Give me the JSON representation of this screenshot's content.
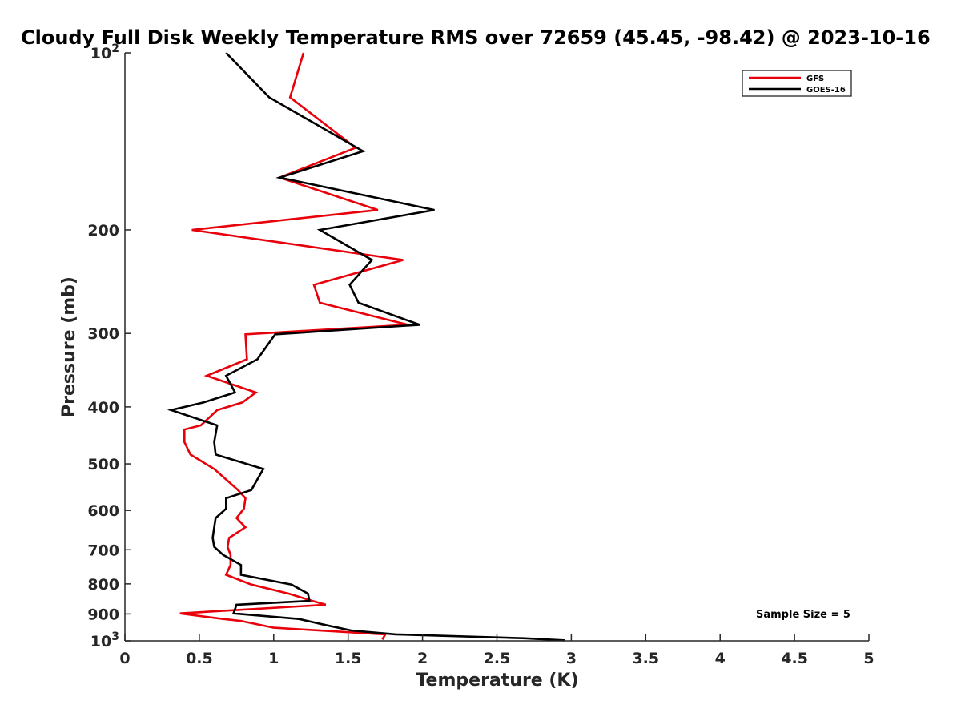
{
  "chart_data": {
    "type": "line",
    "title": "Cloudy Full Disk Weekly Temperature RMS over 72659 (45.45, -98.42) @ 2023-10-16",
    "xlabel": "Temperature (K)",
    "ylabel": "Pressure (mb)",
    "xlim": [
      0,
      5
    ],
    "ylim": [
      100,
      1000
    ],
    "y_scale": "log",
    "y_reversed": true,
    "grid": false,
    "legend_position": "top-right",
    "x_ticks": [
      {
        "value": 0,
        "label": "0"
      },
      {
        "value": 0.5,
        "label": "0.5"
      },
      {
        "value": 1,
        "label": "1"
      },
      {
        "value": 1.5,
        "label": "1.5"
      },
      {
        "value": 2,
        "label": "2"
      },
      {
        "value": 2.5,
        "label": "2.5"
      },
      {
        "value": 3,
        "label": "3"
      },
      {
        "value": 3.5,
        "label": "3.5"
      },
      {
        "value": 4,
        "label": "4"
      },
      {
        "value": 4.5,
        "label": "4.5"
      },
      {
        "value": 5,
        "label": "5"
      }
    ],
    "y_ticks": [
      {
        "value": 100,
        "base": "10",
        "exp": "2"
      },
      {
        "value": 200,
        "label": "200"
      },
      {
        "value": 300,
        "label": "300"
      },
      {
        "value": 400,
        "label": "400"
      },
      {
        "value": 500,
        "label": "500"
      },
      {
        "value": 600,
        "label": "600"
      },
      {
        "value": 700,
        "label": "700"
      },
      {
        "value": 800,
        "label": "800"
      },
      {
        "value": 900,
        "label": "900"
      },
      {
        "value": 1000,
        "base": "10",
        "exp": "3"
      }
    ],
    "series": [
      {
        "name": "GFS",
        "color": "#e8000b",
        "points": [
          [
            1.2,
            100
          ],
          [
            1.11,
            119
          ],
          [
            1.55,
            145
          ],
          [
            1.04,
            163
          ],
          [
            1.7,
            185
          ],
          [
            0.45,
            200
          ],
          [
            1.87,
            225
          ],
          [
            1.27,
            248
          ],
          [
            1.31,
            266
          ],
          [
            1.9,
            290
          ],
          [
            0.81,
            301
          ],
          [
            0.82,
            332
          ],
          [
            0.55,
            354
          ],
          [
            0.88,
            378
          ],
          [
            0.79,
            393
          ],
          [
            0.62,
            405
          ],
          [
            0.51,
            430
          ],
          [
            0.4,
            437
          ],
          [
            0.4,
            459
          ],
          [
            0.44,
            482
          ],
          [
            0.6,
            510
          ],
          [
            0.76,
            554
          ],
          [
            0.81,
            572
          ],
          [
            0.8,
            596
          ],
          [
            0.75,
            618
          ],
          [
            0.81,
            641
          ],
          [
            0.7,
            668
          ],
          [
            0.69,
            692
          ],
          [
            0.71,
            714
          ],
          [
            0.71,
            743
          ],
          [
            0.68,
            772
          ],
          [
            0.85,
            802
          ],
          [
            1.1,
            831
          ],
          [
            1.26,
            855
          ],
          [
            1.35,
            868
          ],
          [
            0.37,
            898
          ],
          [
            0.66,
            918
          ],
          [
            0.78,
            925
          ],
          [
            1.0,
            950
          ],
          [
            1.75,
            975
          ],
          [
            1.73,
            995
          ]
        ]
      },
      {
        "name": "GOES-16",
        "color": "#000000",
        "points": [
          [
            0.68,
            100
          ],
          [
            0.97,
            119
          ],
          [
            1.6,
            147
          ],
          [
            1.04,
            163
          ],
          [
            2.08,
            185
          ],
          [
            1.31,
            200
          ],
          [
            1.66,
            225
          ],
          [
            1.51,
            248
          ],
          [
            1.57,
            266
          ],
          [
            1.98,
            290
          ],
          [
            1.01,
            301
          ],
          [
            0.89,
            332
          ],
          [
            0.68,
            354
          ],
          [
            0.74,
            378
          ],
          [
            0.53,
            393
          ],
          [
            0.31,
            405
          ],
          [
            0.62,
            430
          ],
          [
            0.6,
            459
          ],
          [
            0.61,
            482
          ],
          [
            0.93,
            510
          ],
          [
            0.85,
            554
          ],
          [
            0.68,
            572
          ],
          [
            0.68,
            596
          ],
          [
            0.61,
            618
          ],
          [
            0.6,
            641
          ],
          [
            0.59,
            668
          ],
          [
            0.6,
            692
          ],
          [
            0.66,
            714
          ],
          [
            0.78,
            743
          ],
          [
            0.78,
            772
          ],
          [
            1.12,
            802
          ],
          [
            1.23,
            831
          ],
          [
            1.24,
            855
          ],
          [
            0.75,
            868
          ],
          [
            0.73,
            898
          ],
          [
            1.17,
            918
          ],
          [
            1.35,
            940
          ],
          [
            1.52,
            960
          ],
          [
            1.82,
            975
          ],
          [
            2.69,
            990
          ],
          [
            2.96,
            998
          ]
        ]
      }
    ],
    "annotation": "Sample Size = 5"
  }
}
